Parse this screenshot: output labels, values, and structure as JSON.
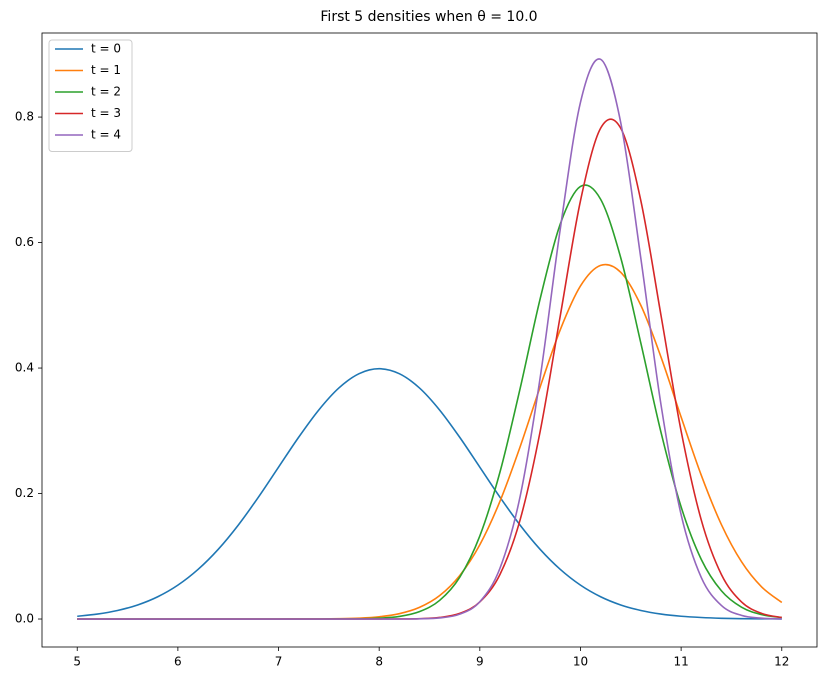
{
  "chart_data": {
    "type": "line",
    "title": "First 5 densities when θ = 10.0",
    "x": [
      5,
      5.2,
      5.4,
      5.6,
      5.8,
      6,
      6.2,
      6.4,
      6.6,
      6.8,
      7,
      7.2,
      7.4,
      7.6,
      7.8,
      8,
      8.2,
      8.4,
      8.6,
      8.8,
      9,
      9.2,
      9.4,
      9.6,
      9.8,
      10,
      10.2,
      10.4,
      10.6,
      10.8,
      11,
      11.2,
      11.4,
      11.6,
      11.8,
      12
    ],
    "series": [
      {
        "name": "t = 0",
        "color": "#1f77b4",
        "values": [
          0.0044,
          0.0079,
          0.0136,
          0.0224,
          0.0355,
          0.054,
          0.079,
          0.1109,
          0.1497,
          0.1942,
          0.242,
          0.2897,
          0.3332,
          0.3683,
          0.391,
          0.3989,
          0.391,
          0.3683,
          0.3332,
          0.2897,
          0.242,
          0.1942,
          0.1497,
          0.1109,
          0.079,
          0.054,
          0.0355,
          0.0224,
          0.0136,
          0.0079,
          0.0044,
          0.0024,
          0.0012,
          0.0006,
          0.0003,
          0.0001
        ]
      },
      {
        "name": "t = 1",
        "color": "#ff7f0e",
        "values": [
          0,
          0,
          0,
          0,
          0,
          0,
          0,
          0,
          0,
          0,
          0,
          0.0001,
          0.0002,
          0.0005,
          0.0014,
          0.0036,
          0.0085,
          0.0185,
          0.0372,
          0.0692,
          0.1184,
          0.1876,
          0.2743,
          0.3703,
          0.4614,
          0.5308,
          0.5636,
          0.5525,
          0.4999,
          0.4175,
          0.3219,
          0.2292,
          0.1506,
          0.0913,
          0.0511,
          0.0264
        ]
      },
      {
        "name": "t = 2",
        "color": "#2ca02c",
        "values": [
          0,
          0,
          0,
          0,
          0,
          0,
          0,
          0,
          0,
          0,
          0,
          0,
          0,
          0.0001,
          0.0003,
          0.0013,
          0.0041,
          0.0117,
          0.0296,
          0.0665,
          0.1324,
          0.2341,
          0.3671,
          0.5107,
          0.6299,
          0.6894,
          0.669,
          0.5758,
          0.4396,
          0.2976,
          0.1787,
          0.0951,
          0.045,
          0.0188,
          0.007,
          0.0023
        ]
      },
      {
        "name": "t = 3",
        "color": "#d62728",
        "values": [
          0,
          0,
          0,
          0,
          0,
          0,
          0,
          0,
          0,
          0,
          0,
          0,
          0,
          0,
          0,
          0,
          0.0001,
          0.0006,
          0.0025,
          0.0089,
          0.0272,
          0.071,
          0.1579,
          0.2995,
          0.484,
          0.6666,
          0.7822,
          0.7822,
          0.6666,
          0.484,
          0.2995,
          0.1579,
          0.071,
          0.0272,
          0.0089,
          0.0025
        ]
      },
      {
        "name": "t = 4",
        "color": "#9467bd",
        "values": [
          0,
          0,
          0,
          0,
          0,
          0,
          0,
          0,
          0,
          0,
          0,
          0,
          0,
          0,
          0,
          0,
          0,
          0.0003,
          0.0017,
          0.0077,
          0.0275,
          0.0809,
          0.1951,
          0.3852,
          0.6224,
          0.8235,
          0.8921,
          0.7912,
          0.5746,
          0.3416,
          0.1663,
          0.0663,
          0.0216,
          0.0058,
          0.0013,
          0.0002
        ]
      }
    ],
    "xlim": [
      4.65,
      12.35
    ],
    "ylim": [
      -0.0446,
      0.934
    ],
    "xticks": [
      5,
      6,
      7,
      8,
      9,
      10,
      11,
      12
    ],
    "yticks": [
      {
        "value": 0,
        "label": "0.0"
      },
      0.2,
      0.4,
      0.6,
      0.8
    ],
    "grid": false,
    "legend": "upper left"
  }
}
